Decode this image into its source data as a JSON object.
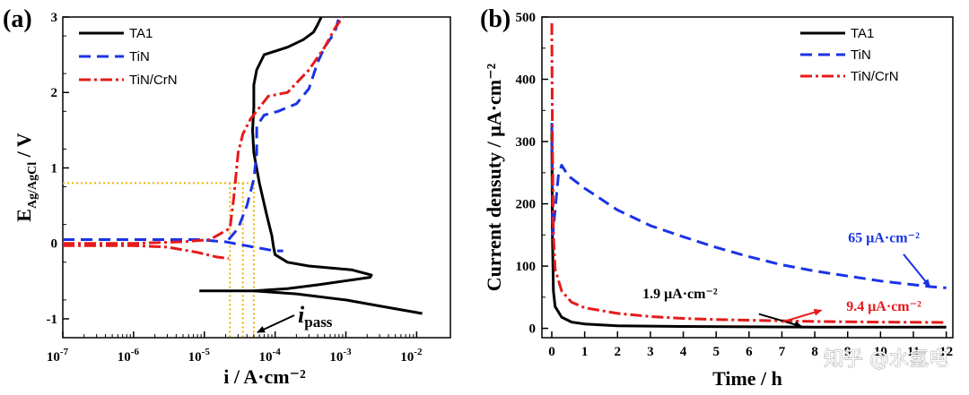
{
  "watermark": "知乎 @水氢电",
  "colors": {
    "TA1": "#000000",
    "TiN": "#1a33e6",
    "TiN/CrN": "#e61a1a",
    "guide": "#f0b400"
  },
  "chart_data": [
    {
      "panel": "(a)",
      "type": "line",
      "xscale": "log",
      "xlabel": "i / A·cm⁻²",
      "ylabel_main": "E",
      "ylabel_sub": "Ag/AgCl",
      "ylabel_unit": " / V",
      "xlim": [
        1e-07,
        0.03
      ],
      "ylim": [
        -1.25,
        3
      ],
      "xticks": [
        {
          "v": 1e-07,
          "base": "10",
          "exp": "-7"
        },
        {
          "v": 1e-06,
          "base": "10",
          "exp": "-6"
        },
        {
          "v": 1e-05,
          "base": "10",
          "exp": "-5"
        },
        {
          "v": 0.0001,
          "base": "10",
          "exp": "-4"
        },
        {
          "v": 0.001,
          "base": "10",
          "exp": "-3"
        },
        {
          "v": 0.01,
          "base": "10",
          "exp": "-2"
        }
      ],
      "yticks": [
        {
          "v": -1,
          "label": "-1"
        },
        {
          "v": 0,
          "label": "0"
        },
        {
          "v": 1,
          "label": "1"
        },
        {
          "v": 2,
          "label": "2"
        },
        {
          "v": 3,
          "label": "3"
        }
      ],
      "legend": [
        "TA1",
        "TiN",
        "TiN/CrN"
      ],
      "annotation": {
        "main": "i",
        "sub": "pass",
        "x": 3.8e-05,
        "y": -1.22
      },
      "guides": {
        "e": 0.8,
        "i_values": [
          2.3e-05,
          3.5e-05,
          5e-05
        ]
      },
      "series": [
        {
          "name": "TA1",
          "style": "solid",
          "points": [
            [
              8.5e-06,
              -0.63
            ],
            [
              5e-05,
              -0.63
            ],
            [
              0.00015,
              -0.6
            ],
            [
              0.0004,
              -0.55
            ],
            [
              0.0022,
              -0.45
            ],
            [
              0.0023,
              -0.42
            ],
            [
              0.0012,
              -0.35
            ],
            [
              0.0003,
              -0.3
            ],
            [
              0.00015,
              -0.25
            ],
            [
              0.0001,
              -0.15
            ],
            [
              9.5e-05,
              -0.05
            ],
            [
              9e-05,
              0.1
            ],
            [
              7.5e-05,
              0.4
            ],
            [
              6e-05,
              0.8
            ],
            [
              5e-05,
              1.2
            ],
            [
              4.8e-05,
              1.5
            ],
            [
              5e-05,
              1.8
            ],
            [
              5e-05,
              2.1
            ],
            [
              5.5e-05,
              2.3
            ],
            [
              7e-05,
              2.5
            ],
            [
              0.00015,
              2.6
            ],
            [
              0.00025,
              2.7
            ],
            [
              0.00035,
              2.8
            ],
            [
              0.0004,
              2.9
            ],
            [
              0.00045,
              3.0
            ]
          ]
        },
        {
          "name": "TA1",
          "style": "solid",
          "points": [
            [
              5e-05,
              -0.63
            ],
            [
              0.0002,
              -0.67
            ],
            [
              0.001,
              -0.75
            ],
            [
              0.003,
              -0.83
            ],
            [
              0.012,
              -0.93
            ]
          ]
        },
        {
          "name": "TiN",
          "style": "dash",
          "points": [
            [
              1e-07,
              0.05
            ],
            [
              1e-06,
              0.05
            ],
            [
              8e-06,
              0.05
            ],
            [
              2e-05,
              0.02
            ],
            [
              5e-05,
              -0.05
            ],
            [
              0.0001,
              -0.1
            ],
            [
              0.00013,
              -0.1
            ]
          ]
        },
        {
          "name": "TiN",
          "style": "dash",
          "points": [
            [
              2.2e-05,
              0.05
            ],
            [
              3e-05,
              0.2
            ],
            [
              4e-05,
              0.5
            ],
            [
              5e-05,
              0.85
            ],
            [
              5.5e-05,
              1.2
            ],
            [
              5.5e-05,
              1.55
            ],
            [
              7e-05,
              1.7
            ],
            [
              0.00011,
              1.75
            ],
            [
              0.0002,
              1.85
            ],
            [
              0.0003,
              2.05
            ],
            [
              0.0004,
              2.4
            ],
            [
              0.0005,
              2.6
            ],
            [
              0.0007,
              2.8
            ],
            [
              0.0008,
              3.0
            ]
          ]
        },
        {
          "name": "TiN/CrN",
          "style": "dashdot",
          "points": [
            [
              1e-07,
              -0.03
            ],
            [
              1e-06,
              -0.03
            ],
            [
              3e-06,
              -0.05
            ],
            [
              8e-06,
              -0.12
            ],
            [
              1.5e-05,
              -0.18
            ],
            [
              2.2e-05,
              -0.2
            ]
          ]
        },
        {
          "name": "TiN/CrN",
          "style": "dashdot",
          "points": [
            [
              1e-07,
              0.0
            ],
            [
              1e-06,
              0.0
            ],
            [
              5e-06,
              0.02
            ],
            [
              1.2e-05,
              0.05
            ],
            [
              2.3e-05,
              0.2
            ],
            [
              2.6e-05,
              0.6
            ],
            [
              2.8e-05,
              0.9
            ],
            [
              3e-05,
              1.2
            ],
            [
              3.5e-05,
              1.45
            ],
            [
              4.5e-05,
              1.65
            ],
            [
              8e-05,
              1.95
            ],
            [
              0.00015,
              2.0
            ],
            [
              0.0003,
              2.3
            ],
            [
              0.0005,
              2.6
            ],
            [
              0.0007,
              2.85
            ],
            [
              0.0009,
              3.0
            ]
          ]
        }
      ]
    },
    {
      "panel": "(b)",
      "type": "line",
      "xlabel": "Time / h",
      "ylabel": "Current densuty / μA·cm⁻²",
      "xlim": [
        -0.3,
        12.2
      ],
      "ylim": [
        -15,
        500
      ],
      "xticks": [
        0,
        1,
        2,
        3,
        4,
        5,
        6,
        7,
        8,
        9,
        10,
        11,
        12
      ],
      "yticks": [
        0,
        100,
        200,
        300,
        400,
        500
      ],
      "legend": [
        "TA1",
        "TiN",
        "TiN/CrN"
      ],
      "annotations": [
        {
          "text": "1.9 μA·cm⁻²",
          "series": "TA1",
          "text_x": 3.9,
          "text_y": 48,
          "arrow_from": [
            6.3,
            23
          ],
          "arrow_to": [
            7.6,
            3
          ]
        },
        {
          "text": "9.4 μA·cm⁻²",
          "series": "TiN/CrN",
          "text_x": 10.1,
          "text_y": 28,
          "arrow_from": [
            7.0,
            10
          ],
          "arrow_to": [
            8.2,
            29
          ]
        },
        {
          "text": "65 μA·cm⁻²",
          "series": "TiN",
          "text_x": 10.1,
          "text_y": 138,
          "arrow_from": [
            10.7,
            119
          ],
          "arrow_to": [
            11.5,
            67
          ]
        }
      ],
      "series": [
        {
          "name": "TA1",
          "style": "solid",
          "points": [
            [
              0,
              320
            ],
            [
              0.02,
              150
            ],
            [
              0.05,
              60
            ],
            [
              0.1,
              35
            ],
            [
              0.3,
              18
            ],
            [
              0.6,
              10
            ],
            [
              1,
              7
            ],
            [
              2,
              4
            ],
            [
              4,
              3
            ],
            [
              8,
              2
            ],
            [
              12,
              1.9
            ]
          ]
        },
        {
          "name": "TiN",
          "style": "dash",
          "points": [
            [
              0,
              330
            ],
            [
              0.03,
              150
            ],
            [
              0.1,
              190
            ],
            [
              0.2,
              245
            ],
            [
              0.3,
              262
            ],
            [
              0.5,
              245
            ],
            [
              1,
              225
            ],
            [
              2,
              190
            ],
            [
              3,
              165
            ],
            [
              4,
              147
            ],
            [
              5,
              130
            ],
            [
              6,
              115
            ],
            [
              7,
              102
            ],
            [
              8,
              92
            ],
            [
              9,
              84
            ],
            [
              10,
              76
            ],
            [
              11,
              70
            ],
            [
              11.5,
              67
            ],
            [
              12,
              65
            ]
          ]
        },
        {
          "name": "TiN/CrN",
          "style": "dashdot",
          "points": [
            [
              0,
              490
            ],
            [
              0.02,
              300
            ],
            [
              0.05,
              150
            ],
            [
              0.1,
              95
            ],
            [
              0.3,
              60
            ],
            [
              0.6,
              42
            ],
            [
              1,
              33
            ],
            [
              2,
              24
            ],
            [
              3,
              19
            ],
            [
              4,
              16
            ],
            [
              5,
              14
            ],
            [
              6,
              13
            ],
            [
              8,
              11
            ],
            [
              10,
              10
            ],
            [
              12,
              9.4
            ]
          ]
        }
      ]
    }
  ]
}
